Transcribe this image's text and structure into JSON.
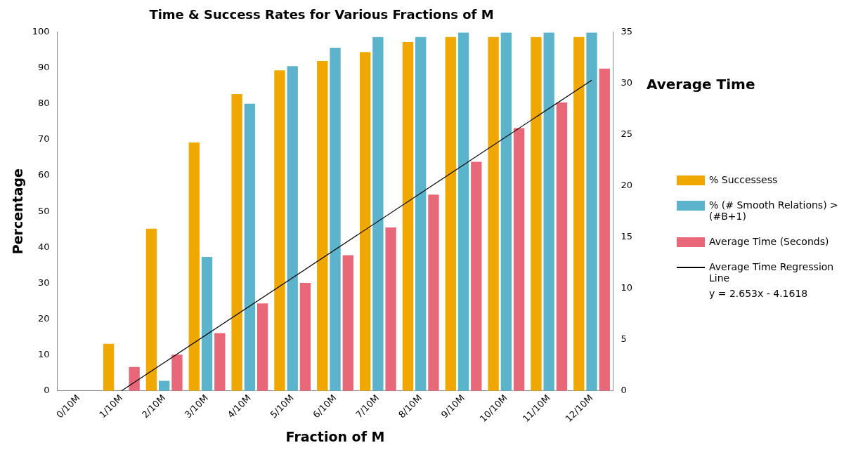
{
  "chart_data": {
    "type": "bar",
    "title": "Time & Success Rates for Various Fractions of M",
    "xlabel": "Fraction of M",
    "ylabel": "Percentage",
    "y2label": "Average Time",
    "categories": [
      "0/10M",
      "1/10M",
      "2/10M",
      "3/10M",
      "4/10M",
      "5/10M",
      "6/10M",
      "7/10M",
      "8/10M",
      "9/10M",
      "10/10M",
      "11/10M",
      "12/10M"
    ],
    "series": [
      {
        "name": "% Successess",
        "color": "#f0a800",
        "values": [
          0,
          13.3,
          45.4,
          69.4,
          82.9,
          89.5,
          92.1,
          94.6,
          97.4,
          98.8,
          98.8,
          98.8,
          98.8
        ]
      },
      {
        "name": "% (# Smooth Relations) > (#B+1)",
        "color": "#5bb4cc",
        "values": [
          0,
          0,
          3,
          37.5,
          80.2,
          90.7,
          95.8,
          98.8,
          98.8,
          100,
          100,
          100,
          100
        ]
      },
      {
        "name": "Average Time (Seconds)",
        "color": "#e8687a",
        "axis": "y2",
        "values": [
          0,
          2.4,
          3.6,
          5.7,
          8.6,
          10.6,
          13.3,
          16.0,
          19.2,
          22.4,
          25.7,
          28.2,
          31.5
        ]
      },
      {
        "name": "Average Time Regression Line",
        "type": "line",
        "color": "#000000",
        "axis": "y2",
        "values": [
          null,
          0,
          null,
          null,
          null,
          null,
          null,
          null,
          null,
          null,
          null,
          null,
          30.3
        ]
      }
    ],
    "ylim": [
      0,
      100
    ],
    "yticks": [
      0,
      10,
      20,
      30,
      40,
      50,
      60,
      70,
      80,
      90,
      100
    ],
    "y2lim": [
      0,
      35
    ],
    "y2ticks": [
      0,
      5,
      10,
      15,
      20,
      25,
      30,
      35
    ],
    "annotations": [
      "y = 2.653x - 4.1618"
    ],
    "legend": "right",
    "grid": false,
    "marker": "none"
  }
}
